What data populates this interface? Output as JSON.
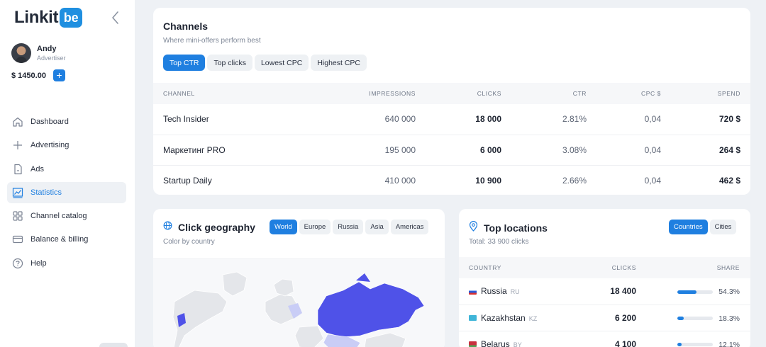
{
  "brand": {
    "name": "Linkit",
    "mark": "be"
  },
  "user": {
    "name": "Andy",
    "role": "Advertiser",
    "balance": "$ 1450.00"
  },
  "nav": [
    {
      "label": "Dashboard",
      "icon": "home-icon"
    },
    {
      "label": "Advertising",
      "icon": "plus-icon"
    },
    {
      "label": "Ads",
      "icon": "document-icon"
    },
    {
      "label": "Statistics",
      "icon": "chart-icon",
      "active": true
    },
    {
      "label": "Channel catalog",
      "icon": "grid-icon"
    },
    {
      "label": "Balance & billing",
      "icon": "card-icon"
    },
    {
      "label": "Help",
      "icon": "help-icon"
    }
  ],
  "channels": {
    "title": "Channels",
    "subtitle": "Where mini-offers perform best",
    "filters": [
      "Top CTR",
      "Top clicks",
      "Lowest CPC",
      "Highest CPC"
    ],
    "active_filter": "Top CTR",
    "columns": [
      "CHANNEL",
      "IMPRESSIONS",
      "CLICKS",
      "CTR",
      "CPC $",
      "SPEND"
    ],
    "rows": [
      [
        "Tech Insider",
        "640 000",
        "18 000",
        "2.81%",
        "0,04",
        "720 $"
      ],
      [
        "Маркетинг PRO",
        "195 000",
        "6 000",
        "3.08%",
        "0,04",
        "264 $"
      ],
      [
        "Startup Daily",
        "410 000",
        "10 900",
        "2.66%",
        "0,04",
        "462 $"
      ]
    ]
  },
  "geo": {
    "title": "Click geography",
    "subtitle": "Color by country",
    "regions": [
      "World",
      "Europe",
      "Russia",
      "Asia",
      "Americas"
    ],
    "active_region": "World",
    "colors": {
      "highlight": "#4f52e8",
      "light": "#c9cdf6",
      "base": "#e4e6ea"
    }
  },
  "locations": {
    "title": "Top locations",
    "total": "Total: 33 900 clicks",
    "modes": [
      "Countries",
      "Cities"
    ],
    "active_mode": "Countries",
    "columns": [
      "COUNTRY",
      "CLICKS",
      "SHARE"
    ],
    "rows": [
      {
        "country": "Russia",
        "code": "RU",
        "clicks": "18 400",
        "share": "54.3%",
        "share_value": 0.543
      },
      {
        "country": "Kazakhstan",
        "code": "KZ",
        "clicks": "6 200",
        "share": "18.3%",
        "share_value": 0.183
      },
      {
        "country": "Belarus",
        "code": "BY",
        "clicks": "4 100",
        "share": "12.1%",
        "share_value": 0.121
      }
    ]
  }
}
